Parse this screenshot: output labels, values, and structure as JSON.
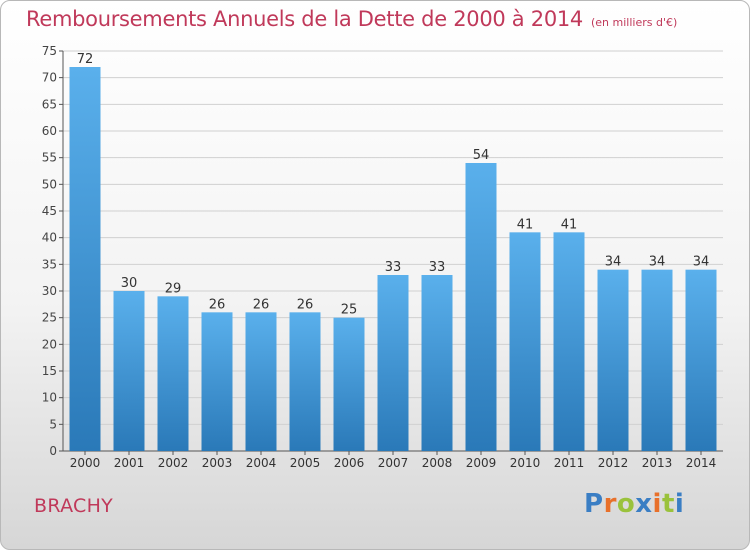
{
  "header": {
    "title": "Remboursements Annuels de la Dette de 2000 à 2014",
    "unit": "(en milliers d'€)"
  },
  "footer": {
    "commune": "BRACHY",
    "logo_text": "Proxiti",
    "logo_colors": [
      "#3a7ec4",
      "#e8702a",
      "#9ac23c",
      "#3a7ec4",
      "#e8702a",
      "#9ac23c",
      "#3a7ec4"
    ]
  },
  "colors": {
    "bar_top": "#5ab0ec",
    "bar_bottom": "#2a79b8",
    "title": "#c0395a",
    "grid": "#d0d0d0"
  },
  "chart_data": {
    "type": "bar",
    "title": "Remboursements Annuels de la Dette de 2000 à 2014",
    "xlabel": "",
    "ylabel": "",
    "categories": [
      "2000",
      "2001",
      "2002",
      "2003",
      "2004",
      "2005",
      "2006",
      "2007",
      "2008",
      "2009",
      "2010",
      "2011",
      "2012",
      "2013",
      "2014"
    ],
    "values": [
      72,
      30,
      29,
      26,
      26,
      26,
      25,
      33,
      33,
      54,
      41,
      41,
      34,
      34,
      34
    ],
    "ylim": [
      0,
      75
    ],
    "yticks": [
      0,
      5,
      10,
      15,
      20,
      25,
      30,
      35,
      40,
      45,
      50,
      55,
      60,
      65,
      70,
      75
    ],
    "grid": true,
    "data_labels": true
  }
}
